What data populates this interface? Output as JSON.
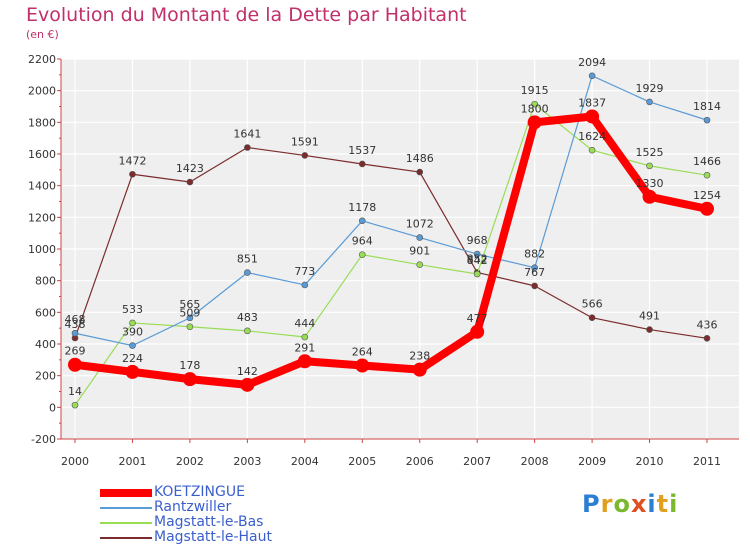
{
  "title": "Evolution du Montant de la Dette par Habitant",
  "subtitle": "(en €)",
  "logo": {
    "text": "Proxiti",
    "colors": [
      "#2a7fd4",
      "#e0a020",
      "#7ab830",
      "#e05020",
      "#2a7fd4",
      "#e0a020",
      "#7ab830"
    ]
  },
  "chart_data": {
    "type": "line",
    "x": [
      "2000",
      "2001",
      "2002",
      "2003",
      "2004",
      "2005",
      "2006",
      "2007",
      "2008",
      "2009",
      "2010",
      "2011"
    ],
    "ylim": [
      -200,
      2200
    ],
    "yticks": [
      "-200",
      "0",
      "200",
      "400",
      "600",
      "800",
      "1000",
      "1200",
      "1400",
      "1600",
      "1800",
      "2000",
      "2200"
    ],
    "grid": true,
    "legend_position": "bottom-left",
    "series": [
      {
        "name": "KOETZINGUE",
        "color": "#ff0000",
        "width": 8,
        "marker": 7,
        "values": [
          269,
          224,
          178,
          142,
          291,
          264,
          238,
          477,
          1800,
          1837,
          1330,
          1254
        ],
        "labels": [
          "269",
          "224",
          "178",
          "142",
          "291",
          "264",
          "238",
          "477",
          "1800",
          "1837",
          "1330",
          "1254"
        ]
      },
      {
        "name": "Rantzwiller",
        "color": "#5b9bd5",
        "width": 1.2,
        "marker": 3,
        "values": [
          468,
          390,
          565,
          851,
          773,
          1178,
          1072,
          968,
          882,
          2094,
          1929,
          1814
        ],
        "labels": [
          "468",
          "390",
          "565",
          "851",
          "773",
          "1178",
          "1072",
          "968",
          "882",
          "2094",
          "1929",
          "1814"
        ]
      },
      {
        "name": "Magstatt-le-Bas",
        "color": "#99dd55",
        "width": 1.2,
        "marker": 3,
        "values": [
          14,
          533,
          509,
          483,
          444,
          964,
          901,
          842,
          1915,
          1624,
          1525,
          1466
        ],
        "labels": [
          "14",
          "533",
          "509",
          "483",
          "444",
          "964",
          "901",
          "842",
          "1915",
          "1624",
          "1525",
          "1466"
        ]
      },
      {
        "name": "Magstatt-le-Haut",
        "color": "#7b2c2c",
        "width": 1.2,
        "marker": 3,
        "values": [
          438,
          1472,
          1423,
          1641,
          1591,
          1537,
          1486,
          852,
          767,
          566,
          491,
          436
        ],
        "labels": [
          "438",
          "1472",
          "1423",
          "1641",
          "1591",
          "1537",
          "1486",
          "852",
          "767",
          "566",
          "491",
          "436"
        ]
      }
    ]
  }
}
